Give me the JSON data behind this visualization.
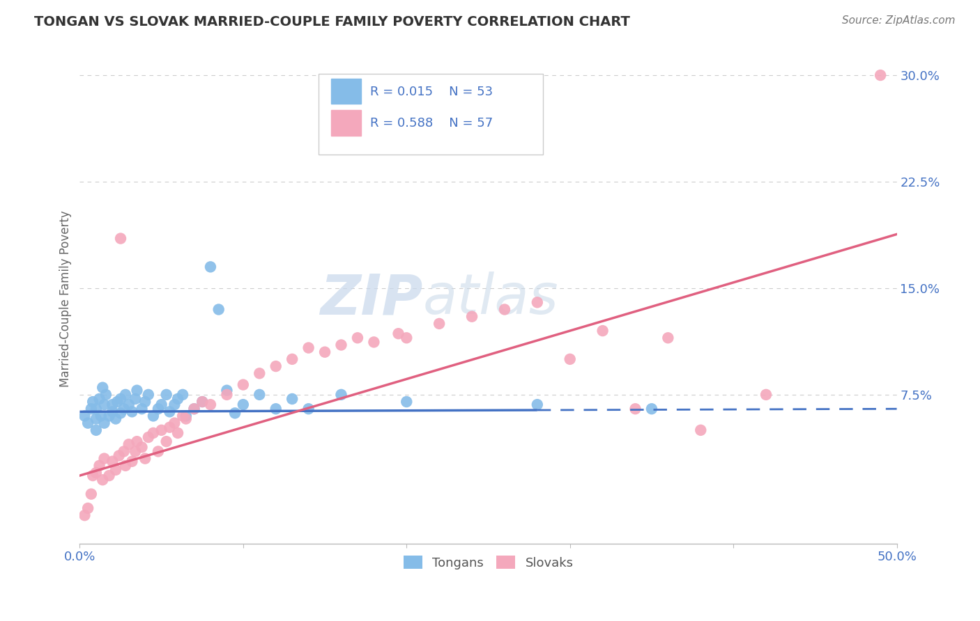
{
  "title": "TONGAN VS SLOVAK MARRIED-COUPLE FAMILY POVERTY CORRELATION CHART",
  "source": "Source: ZipAtlas.com",
  "ylabel": "Married-Couple Family Poverty",
  "xlim": [
    0.0,
    0.5
  ],
  "ylim": [
    -0.03,
    0.315
  ],
  "yticks": [
    0.075,
    0.15,
    0.225,
    0.3
  ],
  "ytick_labels": [
    "7.5%",
    "15.0%",
    "22.5%",
    "30.0%"
  ],
  "tongan_R": 0.015,
  "tongan_N": 53,
  "slovak_R": 0.588,
  "slovak_N": 57,
  "tongan_color": "#85BCE8",
  "slovak_color": "#F4A8BC",
  "tongan_line_color": "#4472C4",
  "slovak_line_color": "#E06080",
  "background_color": "#FFFFFF",
  "grid_color": "#CCCCCC",
  "tongan_line_intercept": 0.063,
  "tongan_line_slope": 0.004,
  "slovak_line_intercept": 0.018,
  "slovak_line_slope": 0.34,
  "tongan_x": [
    0.003,
    0.005,
    0.007,
    0.008,
    0.01,
    0.01,
    0.01,
    0.012,
    0.013,
    0.014,
    0.015,
    0.015,
    0.016,
    0.018,
    0.02,
    0.02,
    0.022,
    0.023,
    0.025,
    0.025,
    0.027,
    0.028,
    0.03,
    0.032,
    0.034,
    0.035,
    0.038,
    0.04,
    0.042,
    0.045,
    0.048,
    0.05,
    0.053,
    0.055,
    0.058,
    0.06,
    0.063,
    0.065,
    0.07,
    0.075,
    0.08,
    0.085,
    0.09,
    0.095,
    0.1,
    0.11,
    0.12,
    0.13,
    0.14,
    0.16,
    0.2,
    0.28,
    0.35
  ],
  "tongan_y": [
    0.06,
    0.055,
    0.065,
    0.07,
    0.05,
    0.058,
    0.065,
    0.072,
    0.06,
    0.08,
    0.055,
    0.068,
    0.075,
    0.06,
    0.063,
    0.068,
    0.058,
    0.07,
    0.062,
    0.072,
    0.065,
    0.075,
    0.068,
    0.063,
    0.072,
    0.078,
    0.065,
    0.07,
    0.075,
    0.06,
    0.065,
    0.068,
    0.075,
    0.063,
    0.068,
    0.072,
    0.075,
    0.06,
    0.065,
    0.07,
    0.165,
    0.135,
    0.078,
    0.062,
    0.068,
    0.075,
    0.065,
    0.072,
    0.065,
    0.075,
    0.07,
    0.068,
    0.065
  ],
  "slovak_x": [
    0.003,
    0.005,
    0.007,
    0.008,
    0.01,
    0.012,
    0.014,
    0.015,
    0.018,
    0.02,
    0.022,
    0.024,
    0.025,
    0.027,
    0.028,
    0.03,
    0.032,
    0.034,
    0.035,
    0.038,
    0.04,
    0.042,
    0.045,
    0.048,
    0.05,
    0.053,
    0.055,
    0.058,
    0.06,
    0.063,
    0.065,
    0.07,
    0.075,
    0.08,
    0.09,
    0.1,
    0.11,
    0.12,
    0.13,
    0.14,
    0.15,
    0.16,
    0.17,
    0.18,
    0.195,
    0.2,
    0.22,
    0.24,
    0.26,
    0.28,
    0.3,
    0.32,
    0.34,
    0.36,
    0.38,
    0.42,
    0.49
  ],
  "slovak_y": [
    -0.01,
    -0.005,
    0.005,
    0.018,
    0.02,
    0.025,
    0.015,
    0.03,
    0.018,
    0.028,
    0.022,
    0.032,
    0.185,
    0.035,
    0.025,
    0.04,
    0.028,
    0.035,
    0.042,
    0.038,
    0.03,
    0.045,
    0.048,
    0.035,
    0.05,
    0.042,
    0.052,
    0.055,
    0.048,
    0.06,
    0.058,
    0.065,
    0.07,
    0.068,
    0.075,
    0.082,
    0.09,
    0.095,
    0.1,
    0.108,
    0.105,
    0.11,
    0.115,
    0.112,
    0.118,
    0.115,
    0.125,
    0.13,
    0.135,
    0.14,
    0.1,
    0.12,
    0.065,
    0.115,
    0.05,
    0.075,
    0.3
  ]
}
